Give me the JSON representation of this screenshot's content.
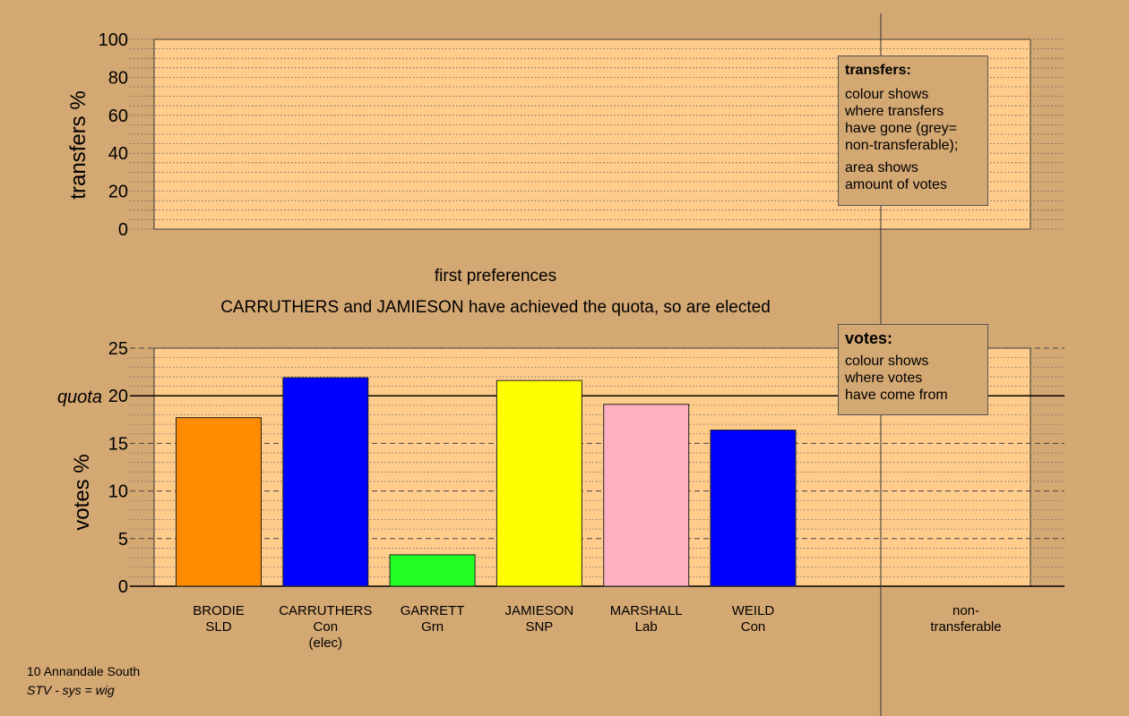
{
  "chart_data": [
    {
      "type": "bar",
      "title": "",
      "ylabel": "transfers %",
      "ylim": [
        0,
        100
      ],
      "yticks": [
        0,
        20,
        40,
        60,
        80,
        100
      ],
      "categories": [],
      "values": []
    },
    {
      "type": "bar",
      "title": "first preferences",
      "subtitle": "CARRUTHERS and JAMIESON have achieved the quota, so are elected",
      "ylabel": "votes %",
      "ylim": [
        0,
        25
      ],
      "yticks": [
        0,
        5,
        10,
        15,
        20,
        25
      ],
      "quota": 20,
      "quota_label": "quota",
      "categories": [
        {
          "name": "BRODIE",
          "party": "SLD",
          "note": "",
          "color": "#ff8c00"
        },
        {
          "name": "CARRUTHERS",
          "party": "Con",
          "note": "(elec)",
          "color": "#0000ff"
        },
        {
          "name": "GARRETT",
          "party": "Grn",
          "note": "",
          "color": "#22ff22"
        },
        {
          "name": "JAMIESON",
          "party": "SNP",
          "note": "",
          "color": "#ffff00"
        },
        {
          "name": "MARSHALL",
          "party": "Lab",
          "note": "",
          "color": "#ffb0c0"
        },
        {
          "name": "WEILD",
          "party": "Con",
          "note": "",
          "color": "#0000ff"
        }
      ],
      "values": [
        17.7,
        21.9,
        3.3,
        21.6,
        19.1,
        16.4
      ],
      "nontransferable_label": [
        "non-",
        "transferable"
      ]
    }
  ],
  "legend_transfers": {
    "title": "transfers:",
    "text1": "colour shows\nwhere transfers\nhave gone (grey=\nnon-transferable);",
    "text2": "area shows\namount of votes"
  },
  "legend_votes": {
    "title": "votes:",
    "text1": "colour shows\nwhere votes\nhave come from"
  },
  "footer": {
    "line1": "10 Annandale South",
    "line2": "STV - sys = wig"
  },
  "colors": {
    "background": "#d4a873",
    "plot_background": "#ffcc8c"
  }
}
